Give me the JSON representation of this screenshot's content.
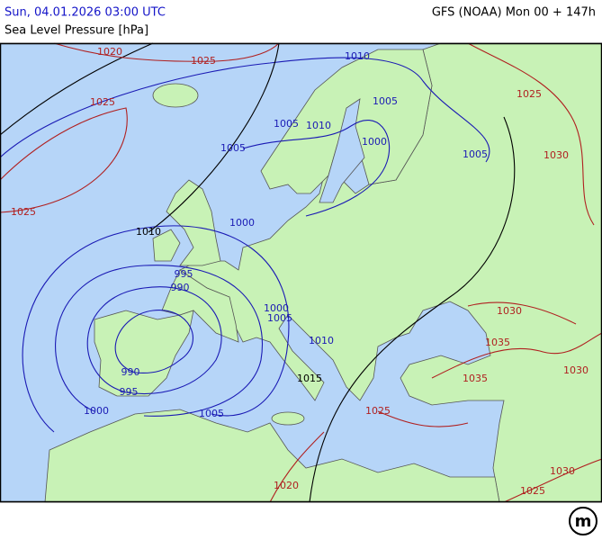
{
  "header": {
    "left": "Sun, 04.01.2026 03:00 UTC",
    "right": "GFS (NOAA) Mon 00 + 147h",
    "subtitle": "Sea Level Pressure [hPa]"
  },
  "logo": "m",
  "isobar_labels": [
    {
      "text": "1020",
      "color": "#b02020"
    },
    {
      "text": "1025",
      "color": "#b02020"
    },
    {
      "text": "1025",
      "color": "#b02020"
    },
    {
      "text": "1025",
      "color": "#b02020"
    },
    {
      "text": "1010",
      "color": "#1a1ab4"
    },
    {
      "text": "1005",
      "color": "#1a1ab4"
    },
    {
      "text": "1005",
      "color": "#1a1ab4"
    },
    {
      "text": "1010",
      "color": "#1a1ab4"
    },
    {
      "text": "1005",
      "color": "#1a1ab4"
    },
    {
      "text": "1000",
      "color": "#1a1ab4"
    },
    {
      "text": "1005",
      "color": "#1a1ab4"
    },
    {
      "text": "1030",
      "color": "#b02020"
    },
    {
      "text": "1025",
      "color": "#b02020"
    },
    {
      "text": "1000",
      "color": "#1a1ab4"
    },
    {
      "text": "1010",
      "color": "#000000"
    },
    {
      "text": "995",
      "color": "#1a1ab4"
    },
    {
      "text": "990",
      "color": "#1a1ab4"
    },
    {
      "text": "1000",
      "color": "#1a1ab4"
    },
    {
      "text": "1005",
      "color": "#1a1ab4"
    },
    {
      "text": "1010",
      "color": "#1a1ab4"
    },
    {
      "text": "1015",
      "color": "#000000"
    },
    {
      "text": "990",
      "color": "#1a1ab4"
    },
    {
      "text": "995",
      "color": "#1a1ab4"
    },
    {
      "text": "1000",
      "color": "#1a1ab4"
    },
    {
      "text": "1005",
      "color": "#1a1ab4"
    },
    {
      "text": "1025",
      "color": "#b02020"
    },
    {
      "text": "1020",
      "color": "#b02020"
    },
    {
      "text": "1025",
      "color": "#b02020"
    },
    {
      "text": "1030",
      "color": "#b02020"
    },
    {
      "text": "1030",
      "color": "#b02020"
    },
    {
      "text": "1035",
      "color": "#b02020"
    },
    {
      "text": "1035",
      "color": "#b02020"
    },
    {
      "text": "1030",
      "color": "#b02020"
    }
  ]
}
